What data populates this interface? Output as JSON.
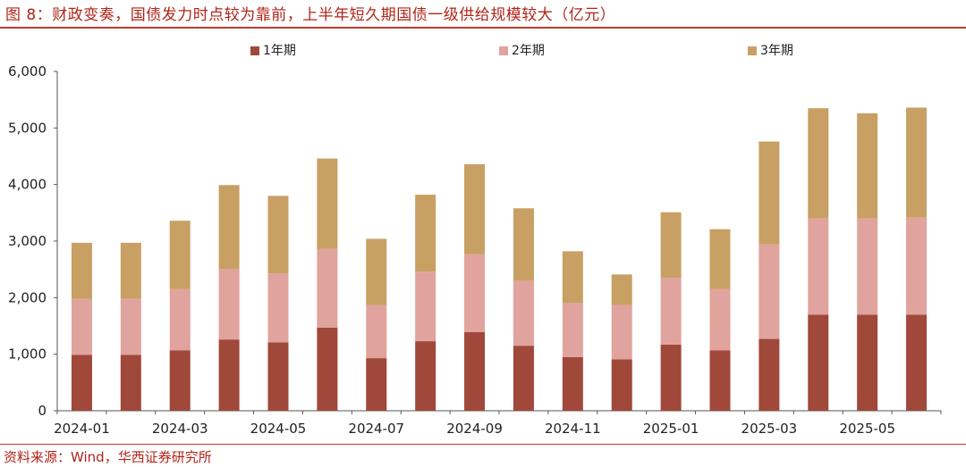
{
  "figure": {
    "title": "图 8：财政变奏，国债发力时点较为靠前，上半年短久期国债一级供给规模较大（亿元）",
    "source": "资料来源：Wind，华西证券研究所"
  },
  "colors": {
    "y1": "#a0483a",
    "y2": "#e0a39d",
    "y3": "#c8a063",
    "accent": "#c0392b"
  },
  "chart_data": {
    "type": "bar",
    "stacked": true,
    "categories": [
      "2024-01",
      "2024-02",
      "2024-03",
      "2024-04",
      "2024-05",
      "2024-06",
      "2024-07",
      "2024-08",
      "2024-09",
      "2024-10",
      "2024-11",
      "2024-12",
      "2025-01",
      "2025-02",
      "2025-03",
      "2025-04",
      "2025-05",
      "2025-06"
    ],
    "x_tick_labels": [
      "2024-01",
      "2024-03",
      "2024-05",
      "2024-07",
      "2024-09",
      "2024-11",
      "2025-01",
      "2025-03",
      "2025-05"
    ],
    "series": [
      {
        "name": "1年期",
        "values": [
          990,
          990,
          1070,
          1260,
          1210,
          1470,
          930,
          1230,
          1390,
          1150,
          950,
          910,
          1170,
          1070,
          1270,
          1700,
          1700,
          1700
        ]
      },
      {
        "name": "2年期",
        "values": [
          990,
          990,
          1080,
          1250,
          1220,
          1390,
          940,
          1230,
          1380,
          1150,
          960,
          960,
          1180,
          1080,
          1670,
          1700,
          1700,
          1720
        ]
      },
      {
        "name": "3年期",
        "values": [
          990,
          990,
          1210,
          1480,
          1370,
          1600,
          1170,
          1360,
          1590,
          1280,
          910,
          540,
          1160,
          1060,
          1820,
          1950,
          1860,
          1940
        ]
      }
    ],
    "ylim": [
      0,
      6000
    ],
    "y_ticks": [
      "0",
      "1,000",
      "2,000",
      "3,000",
      "4,000",
      "5,000",
      "6,000"
    ],
    "legend": "top",
    "grid": false
  }
}
